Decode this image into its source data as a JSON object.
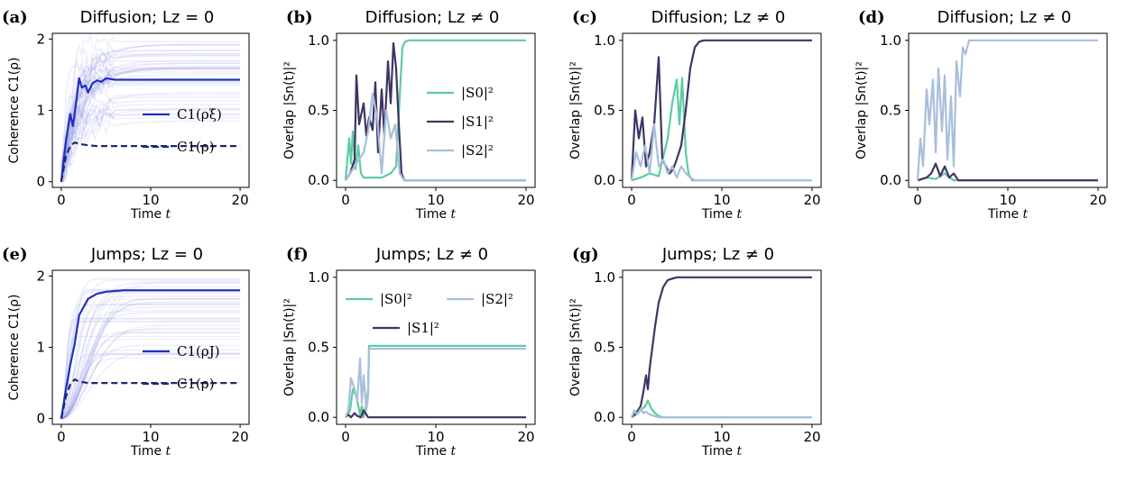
{
  "colors": {
    "teal": "#5ecba1",
    "dark": "#3d3564",
    "light": "#a9bfdc",
    "blue": "#1f2fbf",
    "navy": "#1c2a6e",
    "faint": "#8f98e8"
  },
  "chart_data": [
    {
      "id": "a",
      "type": "line",
      "panel_label": "(a)",
      "title": "Diffusion; Lz = 0",
      "xlabel": "Time t",
      "ylabel": "Coherence C1(ρ)",
      "xlim": [
        -1,
        21
      ],
      "ylim": [
        -0.08,
        2.08
      ],
      "xticks": [
        0,
        10,
        20
      ],
      "yticks": [
        0,
        1,
        2
      ],
      "legend": {
        "placement": "center-right",
        "entries": [
          "C1(ρξ)",
          "C1(ρ)"
        ]
      },
      "faint_trajectories": true,
      "series": [
        {
          "name": "C1(ρξ)",
          "color_key": "blue",
          "style": "solid",
          "x": [
            0,
            0.5,
            1,
            1.3,
            1.7,
            2,
            2.3,
            2.7,
            3,
            3.5,
            4,
            4.5,
            5,
            6,
            8,
            10,
            15,
            20
          ],
          "y": [
            0,
            0.55,
            0.95,
            0.78,
            1.15,
            1.45,
            1.32,
            1.35,
            1.25,
            1.38,
            1.42,
            1.4,
            1.45,
            1.43,
            1.43,
            1.43,
            1.43,
            1.43
          ]
        },
        {
          "name": "C1(ρ)",
          "color_key": "navy",
          "style": "dashed",
          "x": [
            0,
            0.5,
            1,
            1.5,
            2,
            3,
            4,
            6,
            10,
            15,
            20
          ],
          "y": [
            0,
            0.35,
            0.5,
            0.55,
            0.53,
            0.51,
            0.5,
            0.5,
            0.5,
            0.5,
            0.5
          ]
        }
      ]
    },
    {
      "id": "b",
      "type": "line",
      "panel_label": "(b)",
      "title": "Diffusion; Lz ≠ 0",
      "xlabel": "Time t",
      "ylabel": "Overlap |Sn(t)|²",
      "xlim": [
        -1,
        21
      ],
      "ylim": [
        -0.05,
        1.05
      ],
      "xticks": [
        0,
        10,
        20
      ],
      "yticks": [
        0.0,
        0.5,
        1.0
      ],
      "legend": {
        "placement": "center-right",
        "entries": [
          "|S0|²",
          "|S1|²",
          "|S2|²"
        ]
      },
      "series": [
        {
          "name": "|S0|²",
          "color_key": "teal",
          "x": [
            0,
            0.4,
            0.6,
            0.8,
            1.1,
            1.4,
            1.7,
            2,
            3,
            4,
            5,
            5.6,
            6,
            6.3,
            6.6,
            7,
            8,
            20
          ],
          "y": [
            0,
            0.3,
            0.12,
            0.35,
            0.08,
            0.25,
            0.05,
            0.02,
            0.02,
            0.02,
            0.05,
            0.1,
            0.6,
            0.95,
            0.99,
            1.0,
            1.0,
            1.0
          ]
        },
        {
          "name": "|S1|²",
          "color_key": "dark",
          "x": [
            0,
            0.5,
            1,
            1.2,
            1.5,
            2,
            2.3,
            2.6,
            3,
            3.3,
            3.6,
            4,
            4.3,
            4.7,
            5,
            5.3,
            5.6,
            5.9,
            6.2,
            6.5,
            20
          ],
          "y": [
            0,
            0.05,
            0.15,
            0.75,
            0.4,
            0.55,
            0.32,
            0.45,
            0.36,
            0.7,
            0.2,
            0.65,
            0.32,
            0.85,
            0.55,
            0.98,
            0.8,
            0.4,
            0.05,
            0.0,
            0.0
          ]
        },
        {
          "name": "|S2|²",
          "color_key": "light",
          "x": [
            0,
            0.5,
            1,
            1.5,
            2,
            2.5,
            3,
            3.5,
            4,
            4.5,
            5,
            5.5,
            6,
            6.5,
            20
          ],
          "y": [
            0,
            0.05,
            0.1,
            0.15,
            0.2,
            0.35,
            0.62,
            0.45,
            0.05,
            0.5,
            0.3,
            0.4,
            0.05,
            0.0,
            0.0
          ]
        }
      ]
    },
    {
      "id": "c",
      "type": "line",
      "panel_label": "(c)",
      "title": "Diffusion; Lz ≠ 0",
      "xlabel": "Time t",
      "ylabel": "Overlap |Sn(t)|²",
      "xlim": [
        -1,
        21
      ],
      "ylim": [
        -0.05,
        1.05
      ],
      "xticks": [
        0,
        10,
        20
      ],
      "yticks": [
        0.0,
        0.5,
        1.0
      ],
      "series": [
        {
          "name": "|S0|²",
          "color_key": "teal",
          "x": [
            0,
            1,
            2,
            3,
            4,
            4.5,
            5,
            5.3,
            5.6,
            6,
            6.3,
            6.7,
            7,
            20
          ],
          "y": [
            0,
            0.02,
            0.05,
            0.03,
            0.3,
            0.55,
            0.72,
            0.4,
            0.73,
            0.2,
            0.05,
            0.0,
            0.0,
            0.0
          ]
        },
        {
          "name": "|S1|²",
          "color_key": "dark",
          "x": [
            0,
            0.4,
            0.8,
            1.2,
            1.6,
            2,
            2.5,
            3,
            3.4,
            3.8,
            4.2,
            4.6,
            5,
            5.5,
            6,
            6.5,
            7,
            7.5,
            8,
            20
          ],
          "y": [
            0,
            0.5,
            0.3,
            0.45,
            0.1,
            0.2,
            0.4,
            0.88,
            0.15,
            0.1,
            0.05,
            0.08,
            0.15,
            0.25,
            0.5,
            0.8,
            0.95,
            0.99,
            1.0,
            1.0
          ]
        },
        {
          "name": "|S2|²",
          "color_key": "light",
          "x": [
            0,
            0.5,
            1,
            1.5,
            2,
            2.5,
            3,
            3.5,
            4,
            4.5,
            5,
            5.5,
            6,
            6.5,
            7,
            20
          ],
          "y": [
            0,
            0.2,
            0.1,
            0.25,
            0.05,
            0.4,
            0.1,
            0.15,
            0.05,
            0.1,
            0.02,
            0.1,
            0.05,
            0.02,
            0.0,
            0.0
          ]
        }
      ]
    },
    {
      "id": "d",
      "type": "line",
      "panel_label": "(d)",
      "title": "Diffusion; Lz ≠ 0",
      "xlabel": "Time t",
      "ylabel": "Overlap |Sn(t)|²",
      "xlim": [
        -1,
        21
      ],
      "ylim": [
        -0.05,
        1.05
      ],
      "xticks": [
        0,
        10,
        20
      ],
      "yticks": [
        0.0,
        0.5,
        1.0
      ],
      "series": [
        {
          "name": "|S0|²",
          "color_key": "teal",
          "x": [
            0,
            1,
            2,
            3,
            3.5,
            4,
            5,
            20
          ],
          "y": [
            0,
            0.02,
            0.01,
            0.05,
            0.02,
            0.0,
            0.0,
            0.0
          ]
        },
        {
          "name": "|S1|²",
          "color_key": "dark",
          "x": [
            0,
            1,
            1.5,
            2,
            2.5,
            3,
            3.5,
            4,
            4.5,
            5,
            20
          ],
          "y": [
            0,
            0.02,
            0.05,
            0.12,
            0.03,
            0.1,
            0.02,
            0.05,
            0.0,
            0.0,
            0.0
          ]
        },
        {
          "name": "|S2|²",
          "color_key": "light",
          "x": [
            0,
            0.3,
            0.6,
            1,
            1.3,
            1.7,
            2,
            2.3,
            2.7,
            3,
            3.3,
            3.7,
            4,
            4.3,
            4.7,
            5,
            5.3,
            5.7,
            6,
            20
          ],
          "y": [
            0,
            0.3,
            0.1,
            0.65,
            0.4,
            0.72,
            0.2,
            0.8,
            0.35,
            0.75,
            0.15,
            0.6,
            0.1,
            0.85,
            0.6,
            0.95,
            0.9,
            1.0,
            1.0,
            1.0
          ]
        }
      ]
    },
    {
      "id": "e",
      "type": "line",
      "panel_label": "(e)",
      "title": "Jumps; Lz = 0",
      "xlabel": "Time t",
      "ylabel": "Coherence C1(ρ)",
      "xlim": [
        -1,
        21
      ],
      "ylim": [
        -0.08,
        2.08
      ],
      "xticks": [
        0,
        10,
        20
      ],
      "yticks": [
        0,
        1,
        2
      ],
      "legend": {
        "placement": "center-right",
        "entries": [
          "C1(ρJ)",
          "C1(ρ)"
        ]
      },
      "faint_trajectories": true,
      "series": [
        {
          "name": "C1(ρJ)",
          "color_key": "blue",
          "style": "solid",
          "x": [
            0,
            0.5,
            1,
            1.5,
            2,
            3,
            4,
            5,
            7,
            10,
            15,
            20
          ],
          "y": [
            0,
            0.4,
            0.75,
            1.05,
            1.45,
            1.68,
            1.75,
            1.78,
            1.8,
            1.8,
            1.8,
            1.8
          ]
        },
        {
          "name": "C1(ρ)",
          "color_key": "navy",
          "style": "dashed",
          "x": [
            0,
            0.5,
            1,
            1.5,
            2,
            3,
            4,
            6,
            10,
            15,
            20
          ],
          "y": [
            0,
            0.3,
            0.48,
            0.55,
            0.52,
            0.5,
            0.5,
            0.5,
            0.5,
            0.5,
            0.5
          ]
        }
      ]
    },
    {
      "id": "f",
      "type": "line",
      "panel_label": "(f)",
      "title": "Jumps; Lz ≠ 0",
      "xlabel": "Time t",
      "ylabel": "Overlap |Sn(t)|²",
      "xlim": [
        -1,
        21
      ],
      "ylim": [
        -0.05,
        1.05
      ],
      "xticks": [
        0,
        10,
        20
      ],
      "yticks": [
        0.0,
        0.5,
        1.0
      ],
      "legend": {
        "placement": "top",
        "entries": [
          "|S0|²",
          "|S2|²",
          "|S1|²"
        ]
      },
      "series": [
        {
          "name": "|S0|²",
          "color_key": "teal",
          "x": [
            0,
            0.5,
            0.8,
            1.2,
            1.6,
            1.8,
            2,
            2.3,
            2.5,
            2.6,
            20
          ],
          "y": [
            0,
            0.05,
            0.2,
            0.15,
            0.02,
            0.08,
            0.0,
            0.1,
            0.2,
            0.51,
            0.51
          ]
        },
        {
          "name": "|S1|²",
          "color_key": "dark",
          "x": [
            0,
            0.3,
            0.6,
            1,
            1.3,
            1.7,
            2,
            2.3,
            2.5,
            20
          ],
          "y": [
            0,
            0.02,
            0.0,
            0.03,
            0.01,
            0.0,
            0.05,
            0.02,
            0.0,
            0.0
          ]
        },
        {
          "name": "|S2|²",
          "color_key": "light",
          "x": [
            0,
            0.3,
            0.6,
            1,
            1.3,
            1.6,
            1.8,
            2,
            2.3,
            2.5,
            2.6,
            20
          ],
          "y": [
            0,
            0.05,
            0.28,
            0.2,
            0.12,
            0.42,
            0.1,
            0.3,
            0.05,
            0.15,
            0.49,
            0.49
          ]
        }
      ]
    },
    {
      "id": "g",
      "type": "line",
      "panel_label": "(g)",
      "title": "Jumps; Lz ≠ 0",
      "xlabel": "Time t",
      "ylabel": "Overlap |Sn(t)|²",
      "xlim": [
        -1,
        21
      ],
      "ylim": [
        -0.05,
        1.05
      ],
      "xticks": [
        0,
        10,
        20
      ],
      "yticks": [
        0.0,
        0.5,
        1.0
      ],
      "series": [
        {
          "name": "|S0|²",
          "color_key": "teal",
          "x": [
            0,
            0.5,
            1,
            1.5,
            1.8,
            2.2,
            2.6,
            3,
            3.5,
            4,
            20
          ],
          "y": [
            0,
            0.02,
            0.05,
            0.08,
            0.12,
            0.06,
            0.03,
            0.01,
            0.0,
            0.0,
            0.0
          ]
        },
        {
          "name": "|S1|²",
          "color_key": "dark",
          "x": [
            0,
            0.5,
            1,
            1.3,
            1.6,
            1.8,
            2,
            2.3,
            2.6,
            3,
            3.5,
            4,
            4.5,
            5,
            6,
            8,
            20
          ],
          "y": [
            0,
            0.03,
            0.08,
            0.18,
            0.3,
            0.2,
            0.35,
            0.5,
            0.65,
            0.82,
            0.93,
            0.98,
            0.99,
            1.0,
            1.0,
            1.0,
            1.0
          ]
        },
        {
          "name": "|S2|²",
          "color_key": "light",
          "x": [
            0,
            0.3,
            0.6,
            1,
            1.3,
            1.6,
            2,
            2.5,
            3,
            20
          ],
          "y": [
            0,
            0.05,
            0.02,
            0.06,
            0.03,
            0.04,
            0.02,
            0.01,
            0.0,
            0.0
          ]
        }
      ]
    }
  ]
}
